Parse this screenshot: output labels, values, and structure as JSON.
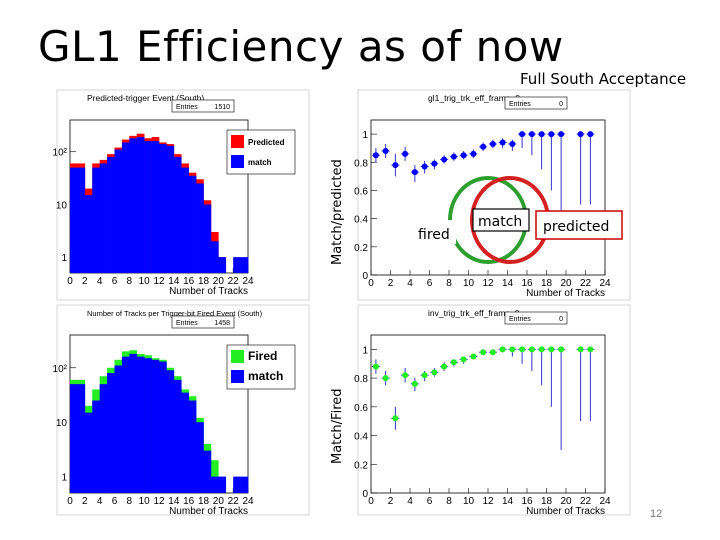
{
  "slide": {
    "title": "GL1 Efficiency as of now",
    "subtitle": "Full South Acceptance",
    "page_number": "12"
  },
  "venn": {
    "labels": {
      "fired": "fired",
      "match": "match",
      "predicted": "predicted"
    },
    "colors": {
      "fired": "#2e9e2e",
      "predicted": "#d42020"
    }
  },
  "chart_data": [
    {
      "type": "bar",
      "title": "Predicted-trigger Event (South)",
      "xlabel": "Number of Tracks",
      "ylabel": "",
      "stats_label": "Entries",
      "stats_value": "1510",
      "yscale": "log",
      "ylim": [
        0.5,
        400
      ],
      "xlim": [
        0,
        24
      ],
      "x_ticks": [
        "0",
        "2",
        "4",
        "6",
        "8",
        "10",
        "12",
        "14",
        "16",
        "18",
        "20",
        "22",
        "24"
      ],
      "y_ticks": [
        {
          "v": 1,
          "label": "1"
        },
        {
          "v": 10,
          "label": "10"
        },
        {
          "v": 100,
          "label": "10²"
        }
      ],
      "legend": [
        {
          "name": "Predicted",
          "color": "#ff0000"
        },
        {
          "name": "match",
          "color": "#0000ff"
        }
      ],
      "series": [
        {
          "name": "Predicted",
          "color": "#ff0000",
          "values": [
            60,
            60,
            20,
            60,
            70,
            90,
            120,
            170,
            200,
            220,
            180,
            190,
            150,
            140,
            90,
            60,
            40,
            30,
            12,
            3,
            1,
            0,
            0,
            0
          ]
        },
        {
          "name": "match",
          "color": "#0000ff",
          "values": [
            50,
            50,
            15,
            50,
            60,
            80,
            110,
            150,
            180,
            190,
            160,
            160,
            140,
            130,
            80,
            50,
            35,
            25,
            10,
            2,
            1,
            0,
            1,
            1
          ]
        }
      ]
    },
    {
      "type": "bar",
      "title": "Number of Tracks per Trigger-bit Fired Event (South)",
      "xlabel": "Number of Tracks",
      "ylabel": "",
      "stats_label": "Entries",
      "stats_value": "1458",
      "yscale": "log",
      "ylim": [
        0.5,
        400
      ],
      "xlim": [
        0,
        24
      ],
      "x_ticks": [
        "0",
        "2",
        "4",
        "6",
        "8",
        "10",
        "12",
        "14",
        "16",
        "18",
        "20",
        "22",
        "24"
      ],
      "y_ticks": [
        {
          "v": 1,
          "label": "1"
        },
        {
          "v": 10,
          "label": "10"
        },
        {
          "v": 100,
          "label": "10²"
        }
      ],
      "legend": [
        {
          "name": "Fired",
          "color": "#22ee22"
        },
        {
          "name": "match",
          "color": "#0000ff"
        }
      ],
      "series": [
        {
          "name": "Fired",
          "color": "#22ee22",
          "values": [
            60,
            60,
            20,
            40,
            70,
            100,
            140,
            200,
            210,
            180,
            170,
            150,
            140,
            100,
            70,
            40,
            30,
            12,
            4,
            2,
            1,
            0,
            0,
            0
          ]
        },
        {
          "name": "match",
          "color": "#0000ff",
          "values": [
            50,
            50,
            15,
            25,
            50,
            80,
            110,
            160,
            180,
            160,
            150,
            140,
            130,
            90,
            60,
            35,
            25,
            10,
            3,
            1,
            1,
            0,
            1,
            1
          ]
        }
      ]
    },
    {
      "type": "scatter",
      "title": "gl1_trig_trk_eff_frame_0",
      "xlabel": "Number of Tracks",
      "ylabel": "Match/predicted",
      "stats_label": "Entries",
      "stats_value": "0",
      "xlim": [
        0,
        24
      ],
      "ylim": [
        0,
        1.1
      ],
      "x_ticks": [
        "0",
        "2",
        "4",
        "6",
        "8",
        "10",
        "12",
        "14",
        "16",
        "18",
        "20",
        "22",
        "24"
      ],
      "y_ticks": [
        {
          "v": 0,
          "label": "0"
        },
        {
          "v": 0.2,
          "label": "0.2"
        },
        {
          "v": 0.4,
          "label": "0.4"
        },
        {
          "v": 0.6,
          "label": "0.6"
        },
        {
          "v": 0.8,
          "label": "0.8"
        },
        {
          "v": 1,
          "label": "1"
        }
      ],
      "marker_color": "#0000ff",
      "x": [
        0.5,
        1.5,
        2.5,
        3.5,
        4.5,
        5.5,
        6.5,
        7.5,
        8.5,
        9.5,
        10.5,
        11.5,
        12.5,
        13.5,
        14.5,
        15.5,
        16.5,
        17.5,
        18.5,
        19.5,
        21.5,
        22.5
      ],
      "y": [
        0.85,
        0.88,
        0.78,
        0.86,
        0.73,
        0.77,
        0.79,
        0.82,
        0.84,
        0.85,
        0.86,
        0.91,
        0.93,
        0.94,
        0.93,
        1.0,
        1.0,
        1.0,
        1.0,
        1.0,
        1.0,
        1.0
      ],
      "yerr_low": [
        0.05,
        0.05,
        0.08,
        0.05,
        0.07,
        0.05,
        0.04,
        0.03,
        0.03,
        0.03,
        0.03,
        0.03,
        0.03,
        0.04,
        0.05,
        0.1,
        0.15,
        0.25,
        0.4,
        0.7,
        0.5,
        0.5
      ],
      "yerr_high": [
        0.05,
        0.05,
        0.08,
        0.05,
        0.05,
        0.04,
        0.03,
        0.03,
        0.03,
        0.03,
        0.03,
        0.03,
        0.03,
        0.03,
        0.03,
        0.0,
        0.0,
        0.0,
        0.0,
        0.0,
        0.0,
        0.0
      ]
    },
    {
      "type": "scatter",
      "title": "inv_trig_trk_eff_frame_0",
      "xlabel": "Number of Tracks",
      "ylabel": "Match/Fired",
      "stats_label": "Entries",
      "stats_value": "0",
      "xlim": [
        0,
        24
      ],
      "ylim": [
        0,
        1.1
      ],
      "x_ticks": [
        "0",
        "2",
        "4",
        "6",
        "8",
        "10",
        "12",
        "14",
        "16",
        "18",
        "20",
        "22",
        "24"
      ],
      "y_ticks": [
        {
          "v": 0,
          "label": "0"
        },
        {
          "v": 0.2,
          "label": "0.2"
        },
        {
          "v": 0.4,
          "label": "0.4"
        },
        {
          "v": 0.6,
          "label": "0.6"
        },
        {
          "v": 0.8,
          "label": "0.8"
        },
        {
          "v": 1,
          "label": "1"
        }
      ],
      "marker_color": "#22ee22",
      "x": [
        0.5,
        1.5,
        2.5,
        3.5,
        4.5,
        5.5,
        6.5,
        7.5,
        8.5,
        9.5,
        10.5,
        11.5,
        12.5,
        13.5,
        14.5,
        15.5,
        16.5,
        17.5,
        18.5,
        19.5,
        21.5,
        22.5
      ],
      "y": [
        0.88,
        0.8,
        0.52,
        0.82,
        0.76,
        0.82,
        0.84,
        0.88,
        0.91,
        0.93,
        0.95,
        0.98,
        0.98,
        1.0,
        1.0,
        1.0,
        1.0,
        1.0,
        1.0,
        1.0,
        1.0,
        1.0
      ],
      "yerr_low": [
        0.05,
        0.05,
        0.08,
        0.05,
        0.05,
        0.04,
        0.03,
        0.03,
        0.03,
        0.03,
        0.02,
        0.02,
        0.02,
        0.02,
        0.05,
        0.1,
        0.15,
        0.25,
        0.4,
        0.7,
        0.5,
        0.5
      ],
      "yerr_high": [
        0.05,
        0.05,
        0.08,
        0.05,
        0.04,
        0.03,
        0.03,
        0.03,
        0.02,
        0.02,
        0.02,
        0.02,
        0.02,
        0.0,
        0.0,
        0.0,
        0.0,
        0.0,
        0.0,
        0.0,
        0.0,
        0.0
      ]
    }
  ]
}
